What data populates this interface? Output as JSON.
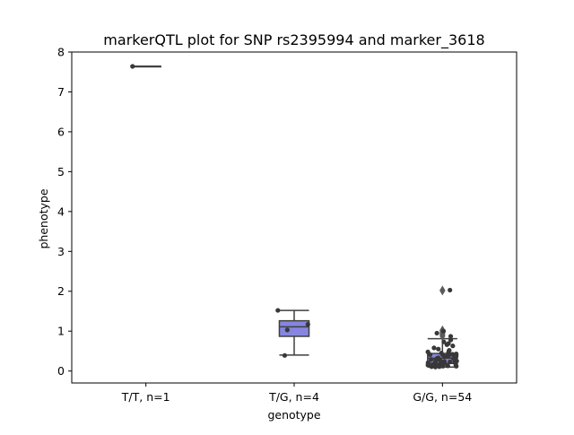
{
  "chart_data": {
    "type": "box",
    "title": "markerQTL plot for SNP rs2395994 and marker_3618",
    "xlabel": "genotype",
    "ylabel": "phenotype",
    "ylim": [
      -0.3,
      8.0
    ],
    "yticks": [
      0,
      1,
      2,
      3,
      4,
      5,
      6,
      7,
      8
    ],
    "grid": false,
    "colors": {
      "box_fill": "#8686e0",
      "box_edge": "#3f3f3f",
      "points": "#383838",
      "outliers": "#5a5a5a",
      "mean_marker": "#9467bd"
    },
    "categories": [
      "T/T, n=1",
      "T/G, n=4",
      "G/G, n=54"
    ],
    "boxes": [
      {
        "q1": 7.64,
        "median": 7.64,
        "q3": 7.64,
        "whisker_low": 7.64,
        "whisker_high": 7.64,
        "outliers": []
      },
      {
        "q1": 0.87,
        "median": 1.11,
        "q3": 1.26,
        "whisker_low": 0.4,
        "whisker_high": 1.52,
        "outliers": []
      },
      {
        "q1": 0.19,
        "median": 0.32,
        "q3": 0.44,
        "whisker_low": 0.1,
        "whisker_high": 0.81,
        "outliers": [
          0.88,
          0.93,
          0.98,
          1.02,
          2.02
        ]
      }
    ],
    "points": [
      [
        7.64
      ],
      [
        1.52,
        1.17,
        1.03,
        0.39
      ],
      [
        2.03,
        1.0,
        0.95,
        0.87,
        0.78,
        0.73,
        0.69,
        0.66,
        0.63,
        0.58,
        0.55,
        0.52,
        0.5,
        0.48,
        0.46,
        0.45,
        0.43,
        0.42,
        0.41,
        0.4,
        0.39,
        0.38,
        0.37,
        0.36,
        0.35,
        0.34,
        0.33,
        0.32,
        0.31,
        0.3,
        0.29,
        0.28,
        0.27,
        0.26,
        0.25,
        0.24,
        0.23,
        0.22,
        0.21,
        0.2,
        0.19,
        0.18,
        0.17,
        0.16,
        0.15,
        0.15,
        0.14,
        0.13,
        0.13,
        0.12,
        0.12,
        0.11,
        0.11,
        0.1
      ]
    ]
  }
}
